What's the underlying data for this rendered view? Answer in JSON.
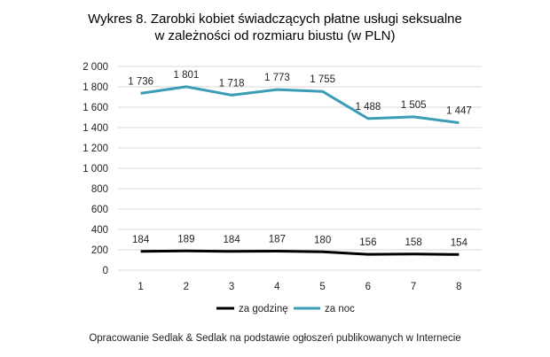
{
  "title_line1": "Wykres 8. Zarobki kobiet świadczących płatne usługi seksualne",
  "title_line2": "w zależności od rozmiaru biustu (w PLN)",
  "source": "Opracowanie Sedlak & Sedlak na podstawie ogłoszeń publikowanych w Internecie",
  "colors": {
    "za_godzine": "#000000",
    "za_noc": "#3a9db5",
    "grid": "#d9d9d9"
  },
  "chart_data": {
    "type": "line",
    "title": "Wykres 8. Zarobki kobiet świadczących płatne usługi seksualne w zależności od rozmiaru biustu (w PLN)",
    "xlabel": "",
    "ylabel": "",
    "categories": [
      "1",
      "2",
      "3",
      "4",
      "5",
      "6",
      "7",
      "8"
    ],
    "ylim": [
      0,
      2000
    ],
    "yticks": [
      0,
      200,
      400,
      600,
      800,
      1000,
      1200,
      1400,
      1600,
      1800,
      2000
    ],
    "ytick_labels": [
      "0",
      "200",
      "400",
      "600",
      "800",
      "1 000",
      "1 200",
      "1 400",
      "1 600",
      "1 800",
      "2 000"
    ],
    "grid": true,
    "legend_position": "bottom",
    "series": [
      {
        "name": "za godzinę",
        "values": [
          184,
          189,
          184,
          187,
          180,
          156,
          158,
          154
        ],
        "labels": [
          "184",
          "189",
          "184",
          "187",
          "180",
          "156",
          "158",
          "154"
        ]
      },
      {
        "name": "za noc",
        "values": [
          1736,
          1801,
          1718,
          1773,
          1755,
          1488,
          1505,
          1447
        ],
        "labels": [
          "1 736",
          "1 801",
          "1 718",
          "1 773",
          "1 755",
          "1 488",
          "1 505",
          "1 447"
        ]
      }
    ]
  }
}
